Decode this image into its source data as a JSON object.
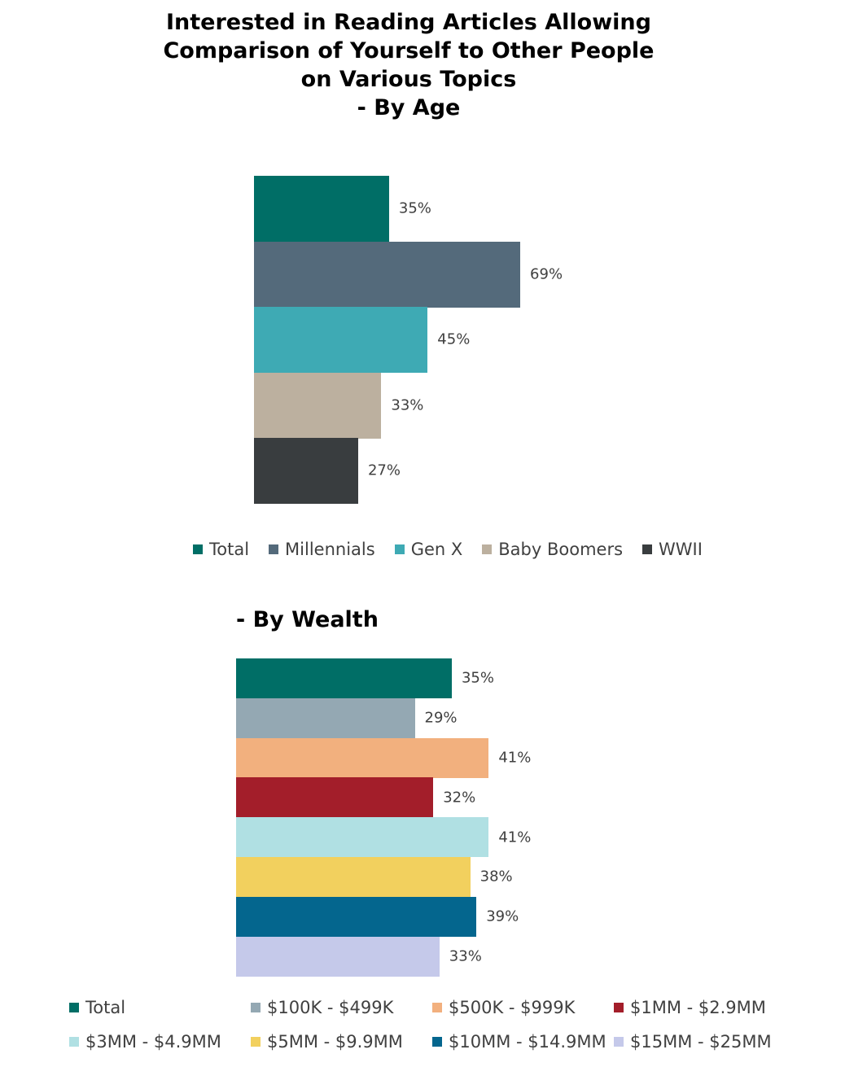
{
  "chart_data": [
    {
      "type": "bar",
      "orientation": "horizontal",
      "title": "Interested in Reading Articles Allowing\nComparison of Yourself to Other People\non Various Topics\n - By Age",
      "series": [
        {
          "name": "Total",
          "color": "#006e66",
          "values": [
            35
          ],
          "value_labels": [
            "35%"
          ]
        },
        {
          "name": "Millennials",
          "color": "#546a7b",
          "values": [
            69
          ],
          "value_labels": [
            "69%"
          ]
        },
        {
          "name": "Gen X",
          "color": "#3eaab4",
          "values": [
            45
          ],
          "value_labels": [
            "45%"
          ]
        },
        {
          "name": "Baby Boomers",
          "color": "#bcb09f",
          "values": [
            33
          ],
          "value_labels": [
            "33%"
          ]
        },
        {
          "name": "WWII",
          "color": "#393d3f",
          "values": [
            27
          ],
          "value_labels": [
            "27%"
          ]
        }
      ],
      "legend": "bottom"
    },
    {
      "type": "bar",
      "orientation": "horizontal",
      "title": " - By Wealth",
      "series": [
        {
          "name": "Total",
          "color": "#006e66",
          "values": [
            35
          ],
          "value_labels": [
            "35%"
          ]
        },
        {
          "name": "$100K - $499K",
          "color": "#94a8b3",
          "values": [
            29
          ],
          "value_labels": [
            "29%"
          ]
        },
        {
          "name": "$500K - $999K",
          "color": "#f2b07e",
          "values": [
            41
          ],
          "value_labels": [
            "41%"
          ]
        },
        {
          "name": "$1MM - $2.9MM",
          "color": "#a31e2a",
          "values": [
            32
          ],
          "value_labels": [
            "32%"
          ]
        },
        {
          "name": "$3MM - $4.9MM",
          "color": "#b0e0e3",
          "values": [
            41
          ],
          "value_labels": [
            "41%"
          ]
        },
        {
          "name": "$5MM - $9.9MM",
          "color": "#f2d05e",
          "values": [
            38
          ],
          "value_labels": [
            "38%"
          ]
        },
        {
          "name": "$10MM - $14.9MM",
          "color": "#04668e",
          "values": [
            39
          ],
          "value_labels": [
            "39%"
          ]
        },
        {
          "name": "$15MM - $25MM",
          "color": "#c5c9ea",
          "values": [
            33
          ],
          "value_labels": [
            "33%"
          ]
        }
      ],
      "legend": "bottom"
    }
  ]
}
